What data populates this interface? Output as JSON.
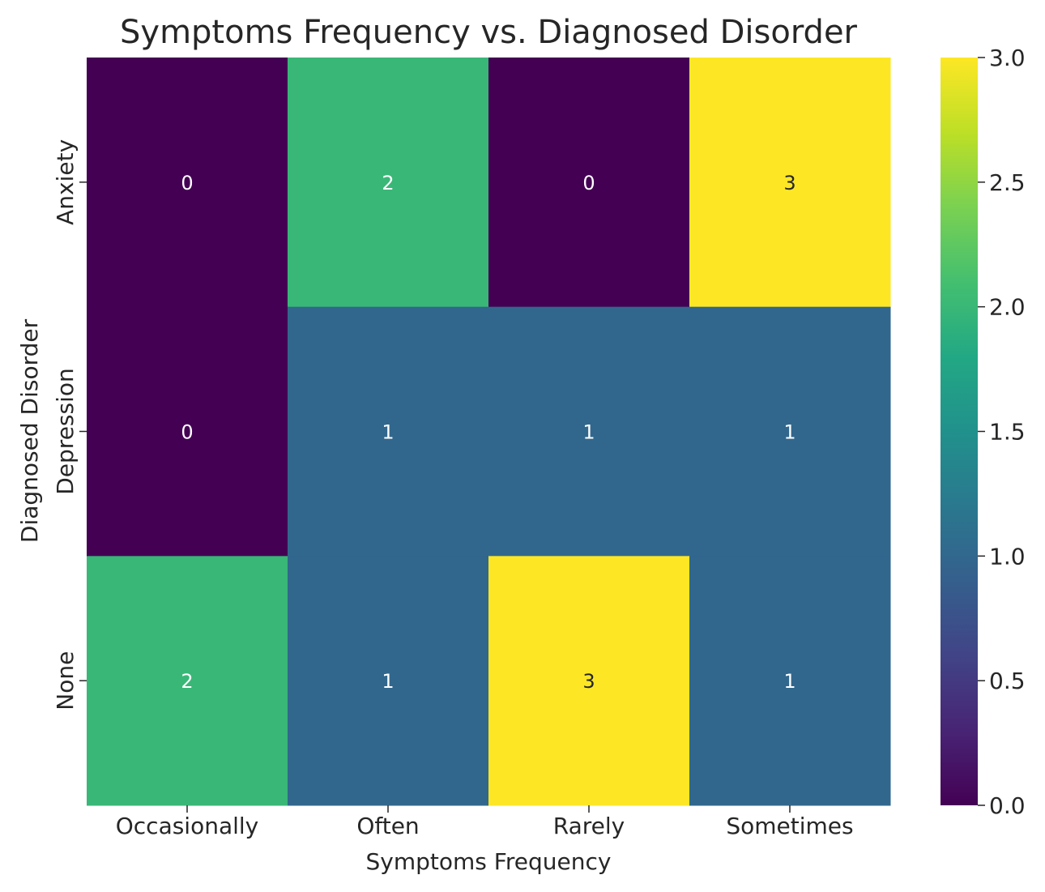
{
  "chart_data": {
    "type": "heatmap",
    "title": "Symptoms Frequency vs. Diagnosed Disorder",
    "xlabel": "Symptoms Frequency",
    "ylabel": "Diagnosed Disorder",
    "x_categories": [
      "Occasionally",
      "Often",
      "Rarely",
      "Sometimes"
    ],
    "y_categories": [
      "Anxiety",
      "Depression",
      "None"
    ],
    "values": [
      [
        0,
        2,
        0,
        3
      ],
      [
        0,
        1,
        1,
        1
      ],
      [
        2,
        1,
        3,
        1
      ]
    ],
    "colormap": "viridis",
    "colorbar": {
      "range": [
        0,
        3
      ],
      "ticks": [
        "0.0",
        "0.5",
        "1.0",
        "1.5",
        "2.0",
        "2.5",
        "3.0"
      ]
    },
    "annotations_shown": true
  }
}
